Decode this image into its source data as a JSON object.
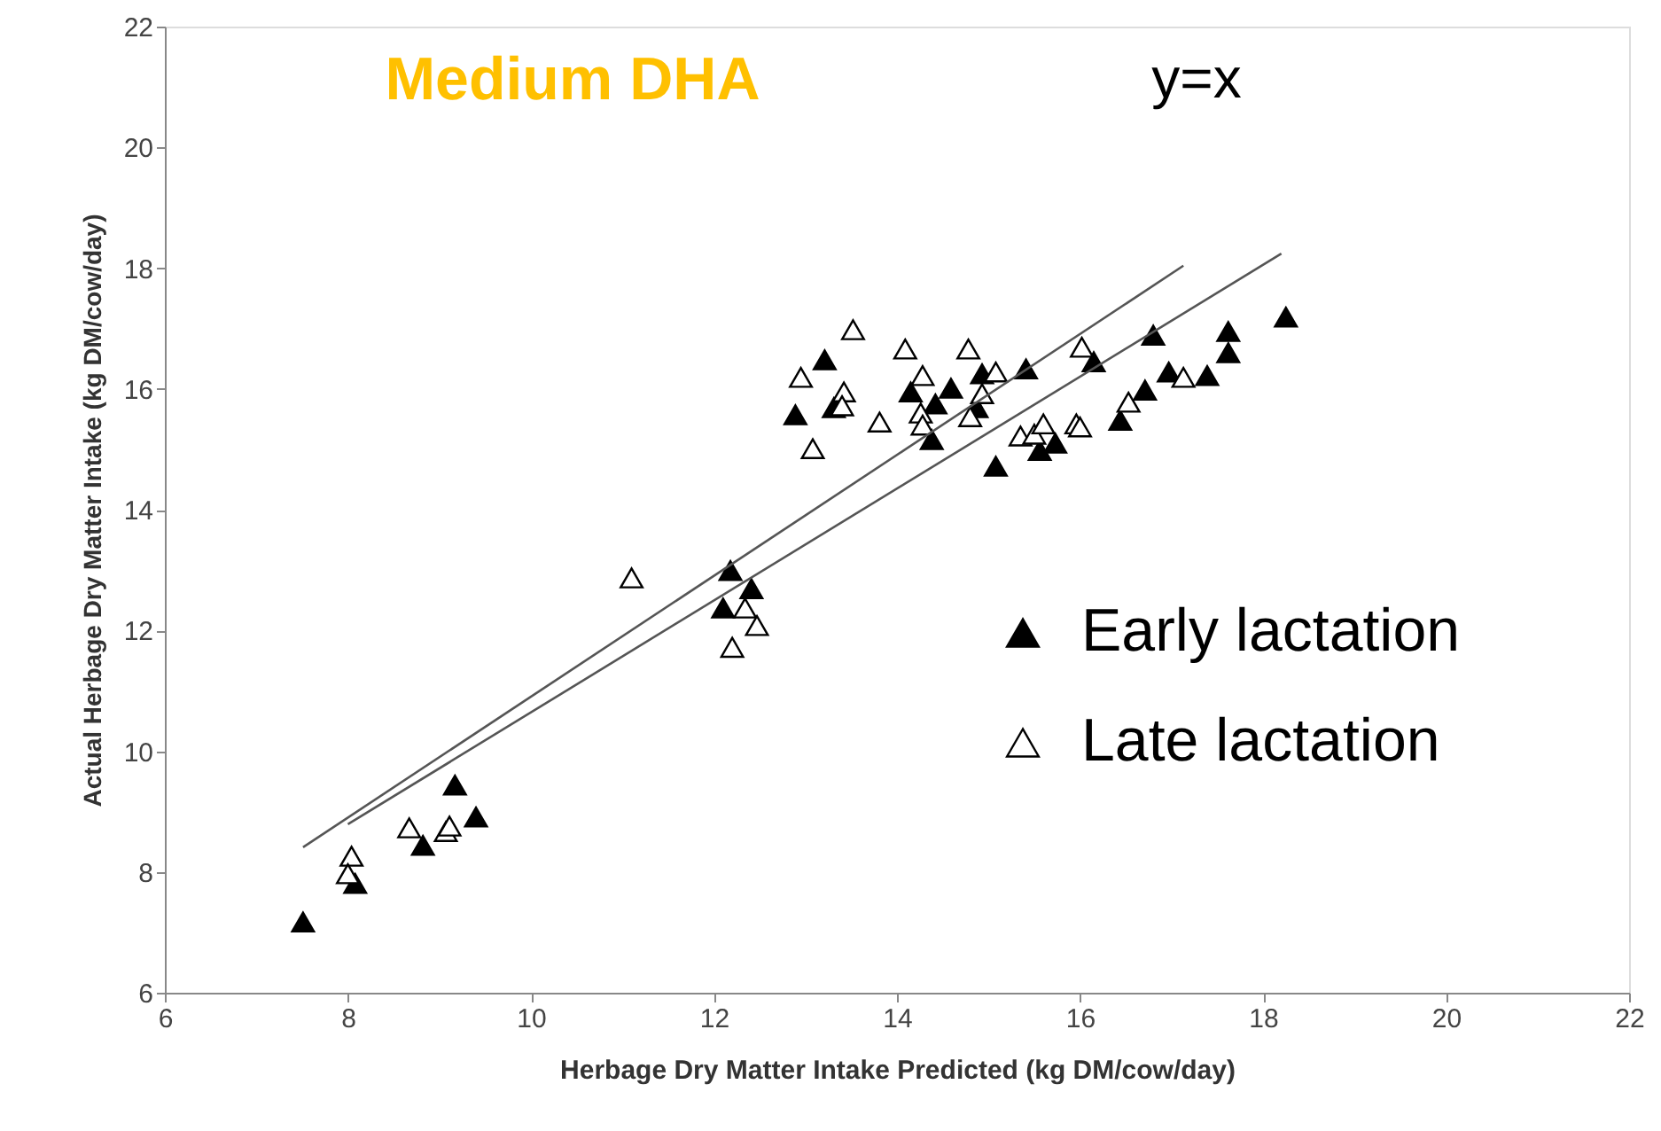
{
  "chart_data": {
    "type": "scatter",
    "title": "Medium DHA",
    "xlabel": "Herbage Dry Matter Intake Predicted (kg DM/cow/day)",
    "ylabel": "Actual Herbage Dry Matter Intake (kg DM/cow/day)",
    "annotations": [
      "y=x"
    ],
    "xlim": [
      6,
      22
    ],
    "ylim": [
      6,
      22
    ],
    "xticks": [
      6,
      8,
      10,
      12,
      14,
      16,
      18,
      20,
      22
    ],
    "yticks": [
      6,
      8,
      10,
      12,
      14,
      16,
      18,
      20,
      22
    ],
    "grid": false,
    "legend": "right",
    "marker": "triangle",
    "series": [
      {
        "name": "Early lactation",
        "color": "#000000",
        "x": [
          7.51,
          8.08,
          8.82,
          9.17,
          9.4,
          12.18,
          12.41,
          12.1,
          13.21,
          12.89,
          13.31,
          14.15,
          14.59,
          14.42,
          14.38,
          14.93,
          14.87,
          15.41,
          15.08,
          15.56,
          15.73,
          16.15,
          16.44,
          16.71,
          16.8,
          16.97,
          17.62,
          17.62,
          17.39,
          18.25
        ],
        "values": [
          7.17,
          7.81,
          8.44,
          9.44,
          8.91,
          12.99,
          12.69,
          12.37,
          16.48,
          15.57,
          15.69,
          15.95,
          16.01,
          15.75,
          15.16,
          16.25,
          15.69,
          16.33,
          14.72,
          14.98,
          15.1,
          16.45,
          15.48,
          15.98,
          16.89,
          16.28,
          16.95,
          16.6,
          16.22,
          17.19
        ]
      },
      {
        "name": "Late lactation",
        "color": "#ffffff",
        "x": [
          8.04,
          8.0,
          8.67,
          9.07,
          9.11,
          11.1,
          12.2,
          12.34,
          12.47,
          13.52,
          12.95,
          13.08,
          13.42,
          13.4,
          13.81,
          14.09,
          14.28,
          14.26,
          14.28,
          14.78,
          15.08,
          14.93,
          14.8,
          15.35,
          15.5,
          15.6,
          15.96,
          16.0,
          16.02,
          16.53,
          17.13
        ],
        "values": [
          8.26,
          7.97,
          8.73,
          8.67,
          8.76,
          12.87,
          11.72,
          12.37,
          12.08,
          16.98,
          16.19,
          15.01,
          15.95,
          15.72,
          15.45,
          16.66,
          16.22,
          15.6,
          15.4,
          16.66,
          16.28,
          15.92,
          15.54,
          15.22,
          15.25,
          15.42,
          15.42,
          15.37,
          16.69,
          15.78,
          16.19
        ]
      },
      {
        "type": "line",
        "color": "#555555",
        "marker": "none",
        "x": [
          7.51,
          17.13
        ],
        "values": [
          8.41,
          18.04
        ]
      },
      {
        "type": "line",
        "color": "#555555",
        "marker": "none",
        "x": [
          8.0,
          18.2
        ],
        "values": [
          8.79,
          18.24
        ]
      }
    ]
  }
}
